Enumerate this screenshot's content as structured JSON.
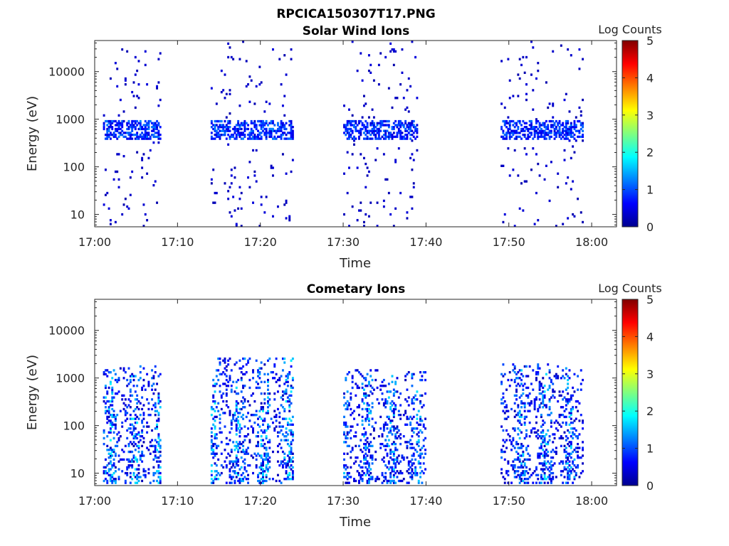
{
  "figure": {
    "title": "RPCICA150307T17.PNG"
  },
  "colormap": {
    "name": "jet",
    "stops": [
      "#00008f",
      "#0000ff",
      "#00ffff",
      "#ffff00",
      "#ff0000",
      "#800000"
    ]
  },
  "chart_data": [
    {
      "type": "heatmap",
      "title": "Solar Wind Ions",
      "xlabel": "Time",
      "ylabel": "Energy (eV)",
      "x_range": [
        "17:00",
        "18:03"
      ],
      "x_ticks": [
        "17:00",
        "17:10",
        "17:20",
        "17:30",
        "17:40",
        "17:50",
        "18:00"
      ],
      "y_scale": "log",
      "y_range": [
        5.5,
        45000
      ],
      "y_ticks": [
        "10",
        "100",
        "1000",
        "10000"
      ],
      "colorbar": {
        "label": "Log Counts",
        "range": [
          0,
          5
        ],
        "ticks": [
          "0",
          "1",
          "2",
          "3",
          "4",
          "5"
        ]
      },
      "bursts": [
        {
          "start": "17:01",
          "end": "17:07",
          "band_low_eV": 350,
          "band_high_eV": 900,
          "max_log_counts": 1.3
        },
        {
          "start": "17:14",
          "end": "17:23",
          "band_low_eV": 350,
          "band_high_eV": 900,
          "max_log_counts": 1.3
        },
        {
          "start": "17:30",
          "end": "17:38",
          "band_low_eV": 350,
          "band_high_eV": 900,
          "max_log_counts": 1.2
        },
        {
          "start": "17:49",
          "end": "17:58",
          "band_low_eV": 350,
          "band_high_eV": 900,
          "max_log_counts": 1.2
        }
      ]
    },
    {
      "type": "heatmap",
      "title": "Cometary Ions",
      "xlabel": "Time",
      "ylabel": "Energy (eV)",
      "x_range": [
        "17:00",
        "18:03"
      ],
      "x_ticks": [
        "17:00",
        "17:10",
        "17:20",
        "17:30",
        "17:40",
        "17:50",
        "18:00"
      ],
      "y_scale": "log",
      "y_range": [
        5.5,
        45000
      ],
      "y_ticks": [
        "10",
        "100",
        "1000",
        "10000"
      ],
      "colorbar": {
        "label": "Log Counts",
        "range": [
          0,
          5
        ],
        "ticks": [
          "0",
          "1",
          "2",
          "3",
          "4",
          "5"
        ]
      },
      "bursts": [
        {
          "start": "17:01",
          "end": "17:07",
          "band_low_eV": 6,
          "band_high_eV": 1800,
          "max_log_counts": 1.8
        },
        {
          "start": "17:14",
          "end": "17:23",
          "band_low_eV": 6,
          "band_high_eV": 2500,
          "max_log_counts": 1.8
        },
        {
          "start": "17:30",
          "end": "17:39",
          "band_low_eV": 6,
          "band_high_eV": 1500,
          "max_log_counts": 1.6
        },
        {
          "start": "17:49",
          "end": "17:58",
          "band_low_eV": 6,
          "band_high_eV": 1900,
          "max_log_counts": 1.6
        }
      ]
    }
  ]
}
